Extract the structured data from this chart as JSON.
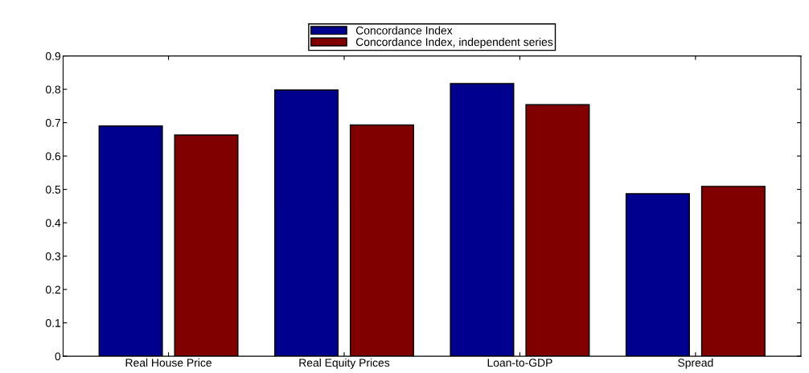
{
  "chart_data": {
    "type": "bar",
    "categories": [
      "Real House Price",
      "Real Equity Prices",
      "Loan-to-GDP",
      "Spread"
    ],
    "series": [
      {
        "name": "Concordance Index",
        "color": "#00008f",
        "values": [
          0.69,
          0.798,
          0.817,
          0.487
        ]
      },
      {
        "name": "Concordance Index, independent series",
        "color": "#800000",
        "values": [
          0.663,
          0.693,
          0.754,
          0.509
        ]
      }
    ],
    "ylim": [
      0,
      0.9
    ],
    "yticks": [
      0,
      0.1,
      0.2,
      0.3,
      0.4,
      0.5,
      0.6,
      0.7,
      0.8,
      0.9
    ],
    "grid": false,
    "legend": "top"
  }
}
